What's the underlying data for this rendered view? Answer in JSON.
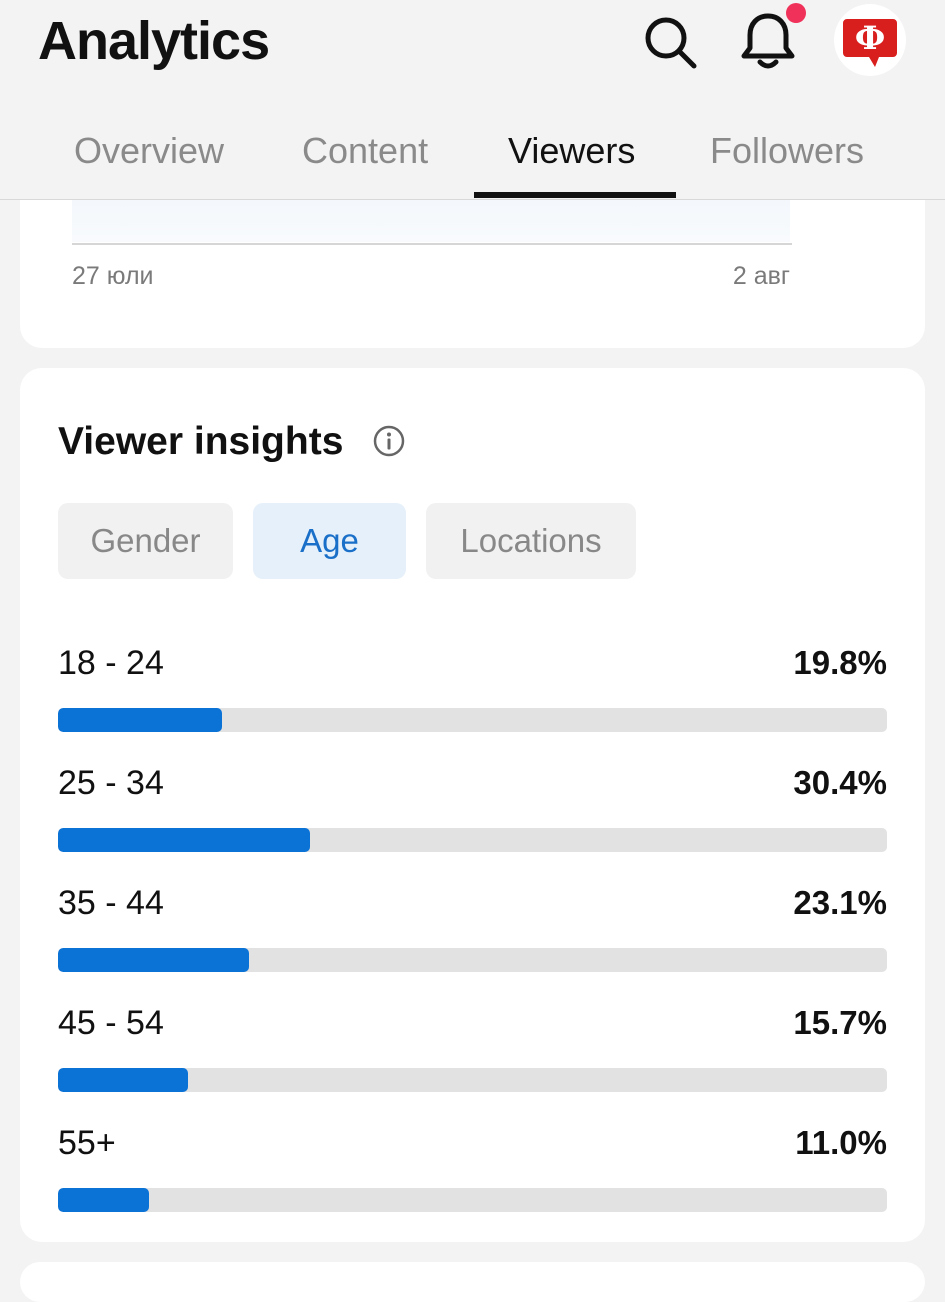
{
  "header": {
    "title": "Analytics",
    "icons": {
      "search": "search-icon",
      "bell": "bell-icon",
      "avatar": "avatar-logo"
    },
    "avatar_letter": "Ф",
    "accent_red": "#d91e1e",
    "notification_dot_color": "#f0325a"
  },
  "tabs": [
    {
      "label": "Overview",
      "active": false
    },
    {
      "label": "Content",
      "active": false
    },
    {
      "label": "Viewers",
      "active": true
    },
    {
      "label": "Followers",
      "active": false
    }
  ],
  "trend_chart": {
    "x_start_label": "27 юли",
    "x_end_label": "2 авг"
  },
  "insights": {
    "title": "Viewer insights",
    "info_icon": "info-icon",
    "filters": [
      {
        "label": "Gender",
        "active": false
      },
      {
        "label": "Age",
        "active": true
      },
      {
        "label": "Locations",
        "active": false
      }
    ],
    "age_groups": [
      {
        "label": "18 - 24",
        "pct_text": "19.8%",
        "value": 19.8
      },
      {
        "label": "25 - 34",
        "pct_text": "30.4%",
        "value": 30.4
      },
      {
        "label": "35 - 44",
        "pct_text": "23.1%",
        "value": 23.1
      },
      {
        "label": "45 - 54",
        "pct_text": "15.7%",
        "value": 15.7
      },
      {
        "label": "55+",
        "pct_text": "11.0%",
        "value": 11.0
      }
    ],
    "bar_color": "#0b72d6",
    "track_color": "#e2e2e2",
    "bar_max_value": 100
  }
}
